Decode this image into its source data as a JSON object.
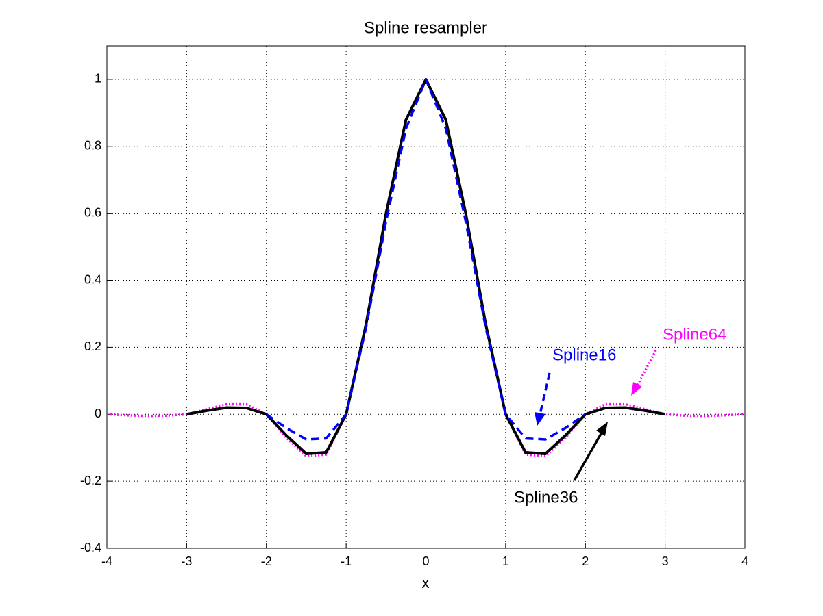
{
  "chart_data": {
    "type": "line",
    "title": "Spline resampler",
    "x_label": "x",
    "x": [
      -4,
      -3.75,
      -3.5,
      -3.25,
      -3,
      -2.75,
      -2.5,
      -2.25,
      -2,
      -1.75,
      -1.5,
      -1.25,
      -1,
      -0.75,
      -0.5,
      -0.25,
      0,
      0.25,
      0.5,
      0.75,
      1,
      1.25,
      1.5,
      1.75,
      2,
      2.25,
      2.5,
      2.75,
      3,
      3.25,
      3.5,
      3.75,
      4
    ],
    "series": [
      {
        "name": "Spline16",
        "color": "#0000ff",
        "dash": "dashed",
        "values": [
          null,
          null,
          null,
          null,
          null,
          null,
          null,
          null,
          0,
          -0.041,
          -0.075,
          -0.072,
          0,
          0.259,
          0.575,
          0.853,
          1,
          0.853,
          0.575,
          0.259,
          0,
          -0.072,
          -0.075,
          -0.041,
          0,
          null,
          null,
          null,
          null,
          null,
          null,
          null,
          null
        ]
      },
      {
        "name": "Spline36",
        "color": "#000000",
        "dash": "solid",
        "values": [
          null,
          null,
          null,
          null,
          0,
          0.011,
          0.02,
          0.019,
          0,
          -0.063,
          -0.118,
          -0.114,
          0,
          0.269,
          0.599,
          0.879,
          1,
          0.879,
          0.599,
          0.269,
          0,
          -0.114,
          -0.118,
          -0.063,
          0,
          0.019,
          0.02,
          0.011,
          0,
          null,
          null,
          null,
          null
        ]
      },
      {
        "name": "Spline64",
        "color": "#ff00ff",
        "dash": "dotted",
        "values": [
          0,
          -0.003,
          -0.005,
          -0.004,
          0,
          0.015,
          0.03,
          0.03,
          0,
          -0.07,
          -0.125,
          -0.12,
          0,
          0.27,
          0.6,
          0.88,
          1,
          0.88,
          0.6,
          0.27,
          0,
          -0.12,
          -0.125,
          -0.07,
          0,
          0.03,
          0.03,
          0.015,
          0,
          -0.004,
          -0.005,
          -0.003,
          0
        ]
      }
    ],
    "annotations": [
      {
        "text": "Spline16",
        "color": "#0000ff"
      },
      {
        "text": "Spline64",
        "color": "#ff00ff"
      },
      {
        "text": "Spline36",
        "color": "#000000"
      }
    ],
    "xlim": [
      -4,
      4
    ],
    "xticks": [
      -4,
      -3,
      -2,
      -1,
      0,
      1,
      2,
      3,
      4
    ],
    "ylim": [
      -0.4,
      1.1
    ],
    "yticks": [
      -0.4,
      -0.2,
      0,
      0.2,
      0.4,
      0.6,
      0.8,
      1
    ],
    "grid": true
  }
}
